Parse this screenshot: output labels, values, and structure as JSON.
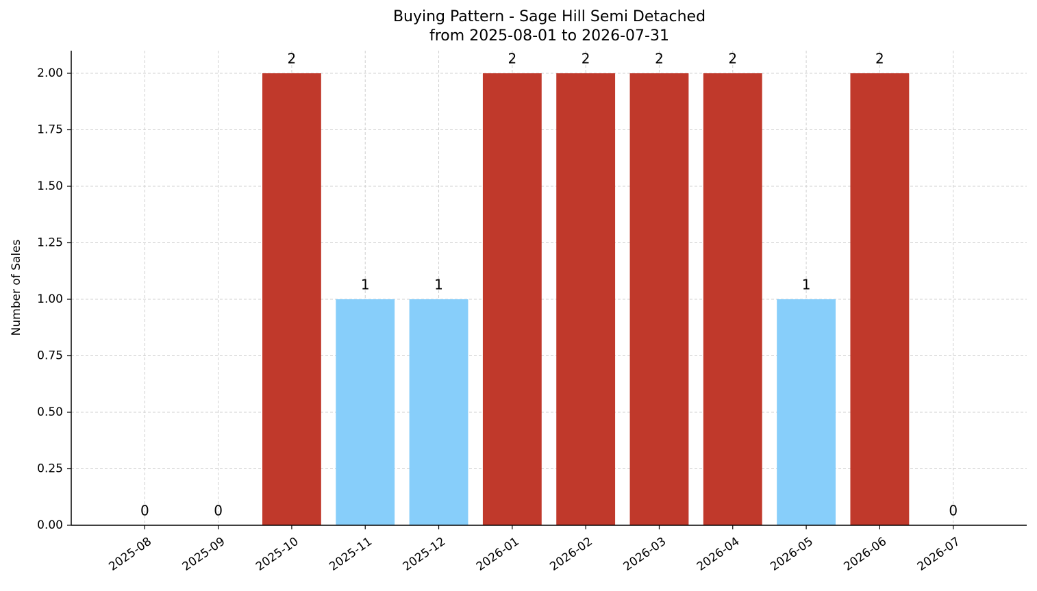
{
  "chart_data": {
    "type": "bar",
    "title": [
      "Buying Pattern - Sage Hill Semi Detached",
      "from 2025-08-01 to 2026-07-31"
    ],
    "ylabel": "Number of Sales",
    "categories": [
      "2025-08",
      "2025-09",
      "2025-10",
      "2025-11",
      "2025-12",
      "2026-01",
      "2026-02",
      "2026-03",
      "2026-04",
      "2026-05",
      "2026-06",
      "2026-07"
    ],
    "values": [
      0,
      0,
      2,
      1,
      1,
      2,
      2,
      2,
      2,
      1,
      2,
      0
    ],
    "colors": [
      "#c0392b",
      "#c0392b",
      "#c0392b",
      "#87cefa",
      "#87cefa",
      "#c0392b",
      "#c0392b",
      "#c0392b",
      "#c0392b",
      "#87cefa",
      "#c0392b",
      "#c0392b"
    ],
    "ylim": [
      0,
      2.1
    ],
    "yticks": [
      {
        "value": 0,
        "label": "0.00"
      },
      {
        "value": 0.25,
        "label": "0.25"
      },
      {
        "value": 0.5,
        "label": "0.50"
      },
      {
        "value": 0.75,
        "label": "0.75"
      },
      {
        "value": 1,
        "label": "1.00"
      },
      {
        "value": 1.25,
        "label": "1.25"
      },
      {
        "value": 1.5,
        "label": "1.50"
      },
      {
        "value": 1.75,
        "label": "1.75"
      },
      {
        "value": 2,
        "label": "2.00"
      }
    ],
    "grid": true
  }
}
